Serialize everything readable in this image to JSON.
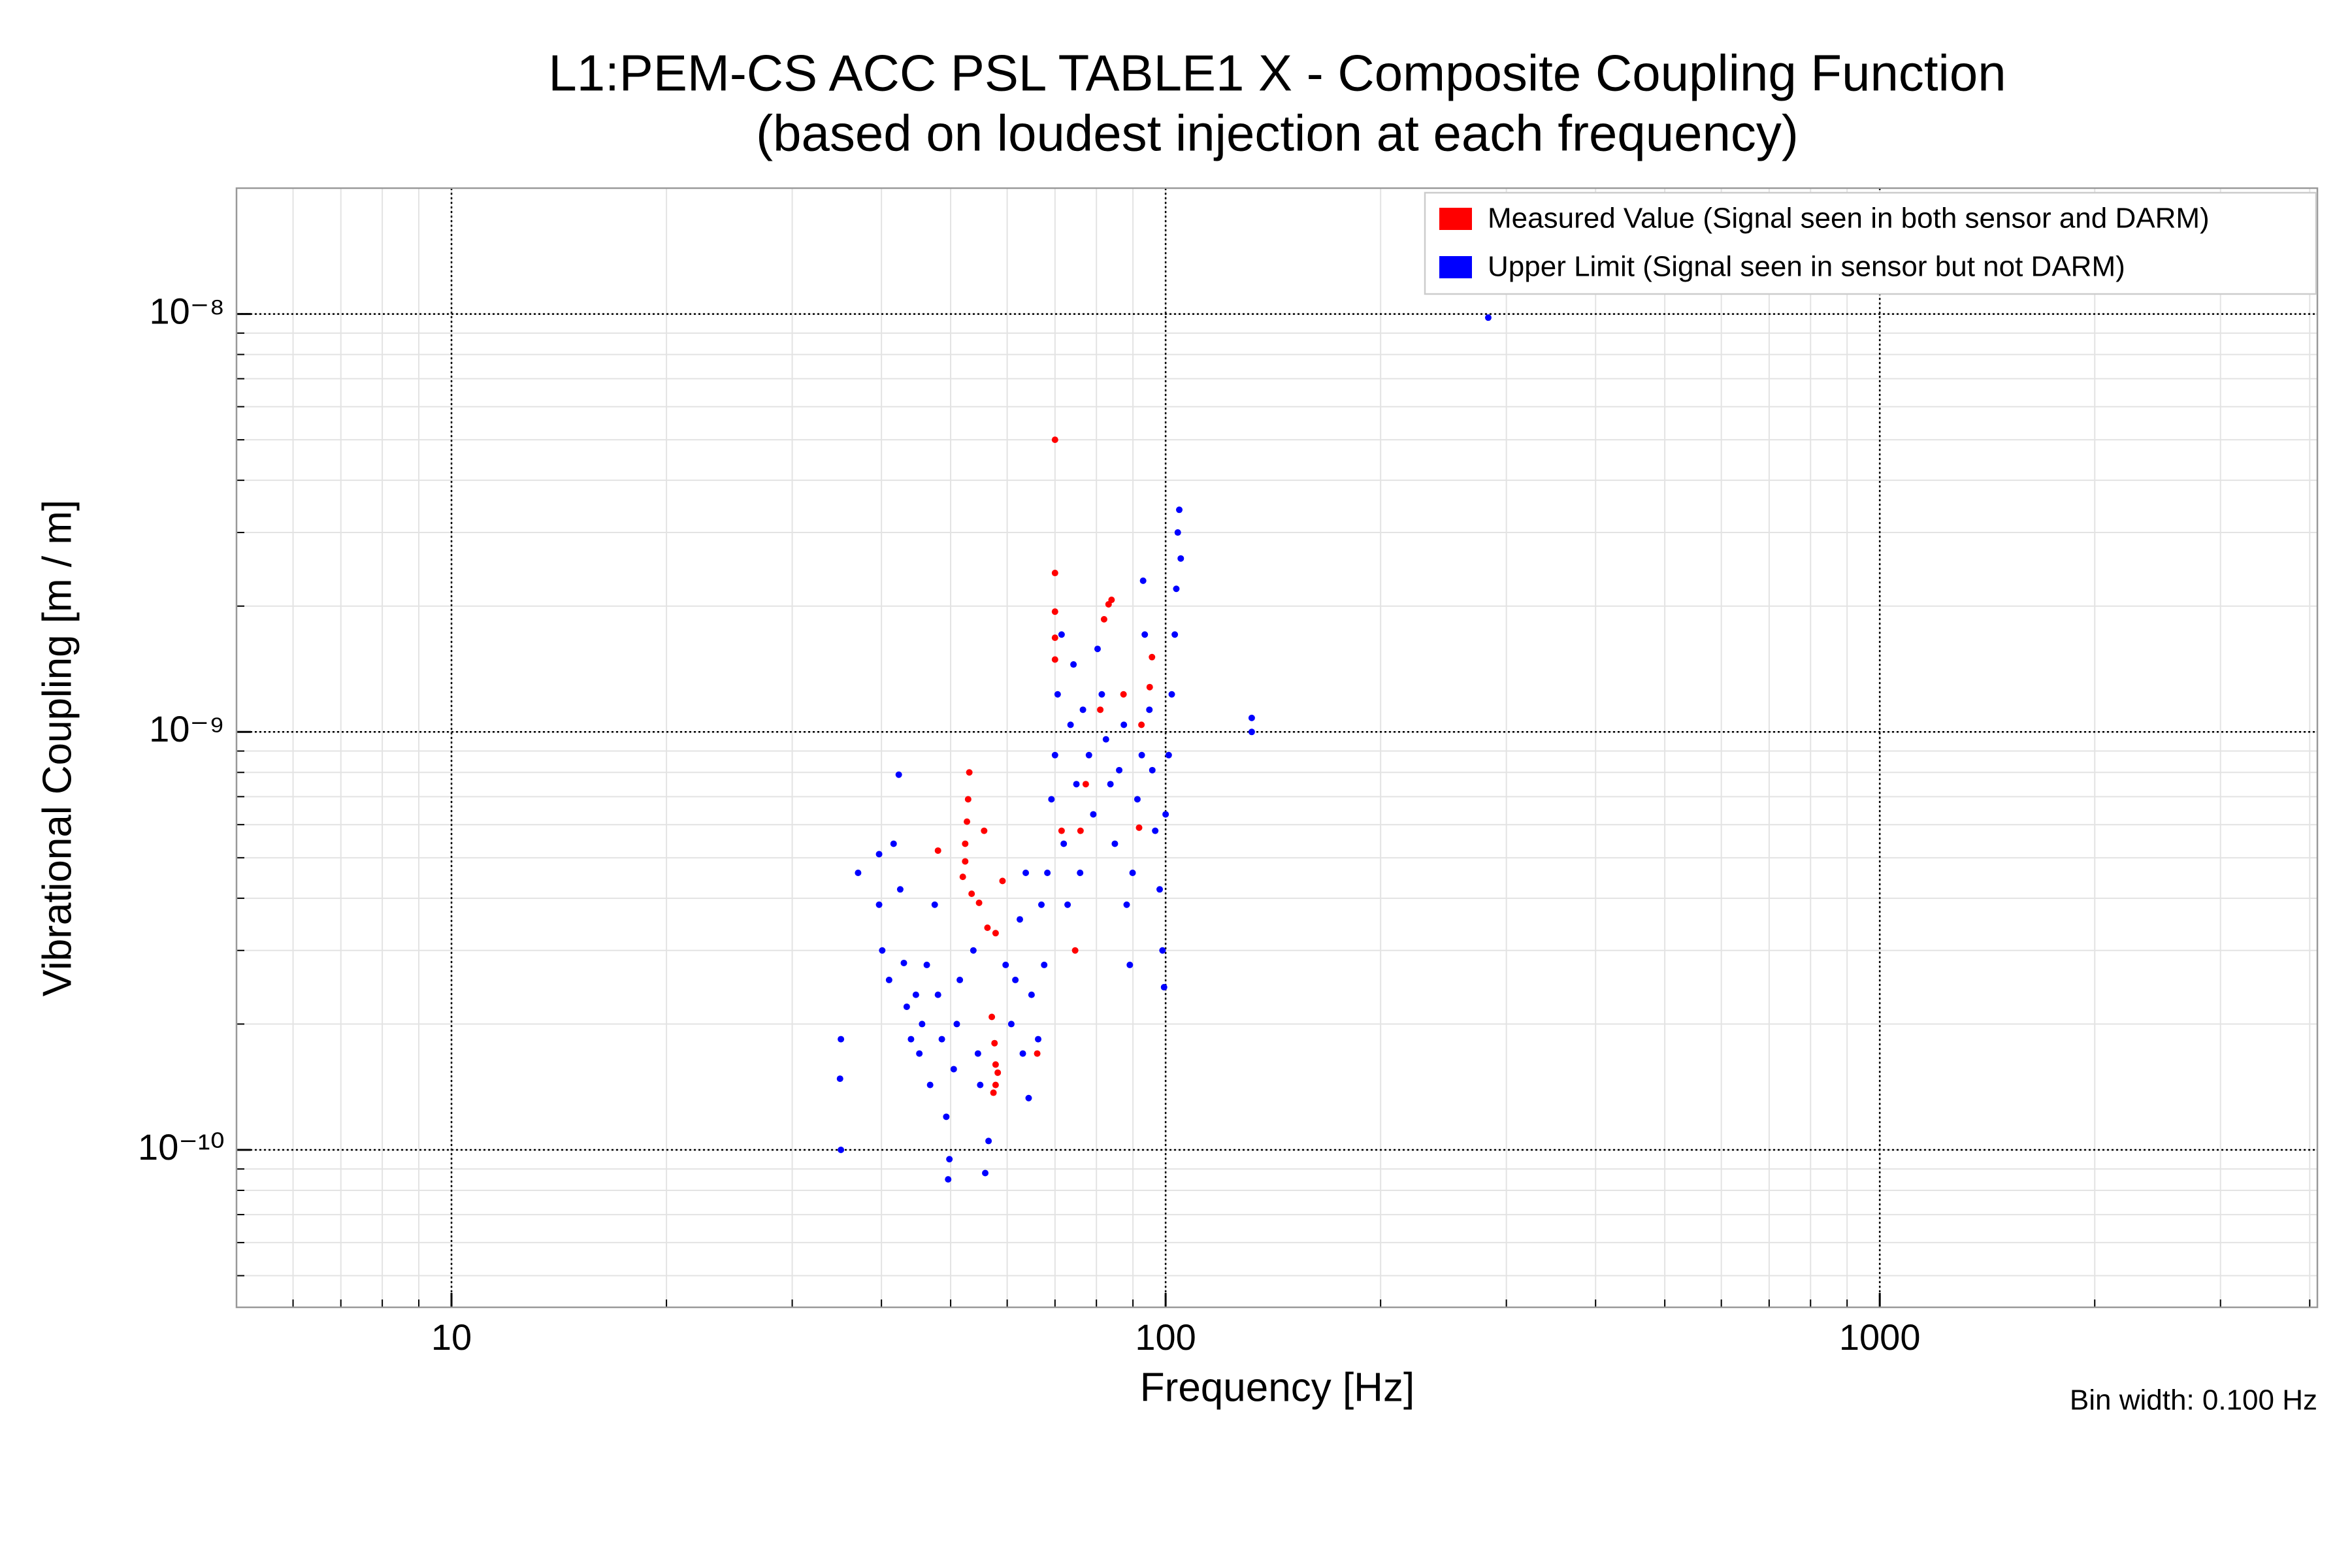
{
  "chart_data": {
    "type": "scatter",
    "title": "L1:PEM-CS ACC PSL TABLE1 X - Composite Coupling Function",
    "subtitle": "(based on loudest injection at each frequency)",
    "x_label": "Frequency [Hz]",
    "y_label": "Vibrational Coupling [m / m]",
    "annotation": "Bin width: 0.100 Hz",
    "x_log": true,
    "y_log": true,
    "grid": true,
    "minor_grid": true,
    "legend_position": "upper right",
    "xlim": [
      5,
      4100
    ],
    "ylim": [
      4.2e-11,
      2e-08
    ],
    "xticks": [
      10,
      100,
      1000
    ],
    "yticks": [
      {
        "value": 1e-10,
        "label": "10⁻¹⁰"
      },
      {
        "value": 1e-09,
        "label": "10⁻⁹"
      },
      {
        "value": 1e-08,
        "label": "10⁻⁸"
      }
    ],
    "series": [
      {
        "name": "Measured Value (Signal seen in both sensor and DARM)",
        "color": "#ff0000",
        "x": [
          70,
          70,
          70,
          70,
          70,
          83.2,
          82,
          84,
          95.7,
          95,
          77.3,
          76,
          87.3,
          92.5,
          91.8,
          53.1,
          52.9,
          52.7,
          52.4,
          52.4,
          55.7,
          53.5,
          54.8,
          48,
          52,
          56.3,
          59.1,
          57.8,
          57.1,
          57.6,
          57.8,
          57.8,
          58.2,
          57.4,
          66.1,
          74.7,
          71.5,
          81
        ],
        "values": [
          5e-09,
          2.4e-09,
          1.94e-09,
          1.68e-09,
          1.49e-09,
          2.02e-09,
          1.86e-09,
          2.07e-09,
          1.51e-09,
          1.28e-09,
          7.5e-10,
          5.8e-10,
          1.23e-09,
          1.04e-09,
          5.9e-10,
          8e-10,
          6.9e-10,
          6.1e-10,
          5.4e-10,
          4.9e-10,
          5.8e-10,
          4.1e-10,
          3.9e-10,
          5.2e-10,
          4.5e-10,
          3.4e-10,
          4.4e-10,
          3.3e-10,
          2.08e-10,
          1.8e-10,
          1.6e-10,
          1.43e-10,
          1.53e-10,
          1.37e-10,
          1.7e-10,
          3e-10,
          5.8e-10,
          1.13e-09
        ]
      },
      {
        "name": "Upper Limit (Signal seen in sensor but not DARM)",
        "color": "#0000ff",
        "x": [
          35.1,
          35,
          35.1,
          37.1,
          39.7,
          39.7,
          40.1,
          41,
          41.6,
          42.3,
          42.5,
          43,
          43.4,
          44,
          44.7,
          45.2,
          45.6,
          46.3,
          46.8,
          47.5,
          48,
          48.6,
          49.3,
          49.8,
          49.6,
          50.5,
          51,
          51.5,
          53.8,
          54.6,
          55,
          55.9,
          56.5,
          59.7,
          60.8,
          61.6,
          62.5,
          63.1,
          63.7,
          64.3,
          64.9,
          66.3,
          67,
          67.6,
          68.3,
          69.2,
          70,
          70.6,
          71.5,
          72,
          72.9,
          73.6,
          74.3,
          75,
          75.9,
          76.6,
          78.1,
          79.2,
          80.3,
          81.4,
          82.5,
          83.7,
          84.9,
          86.1,
          87.4,
          88.2,
          89.1,
          89.9,
          91.3,
          92.6,
          93.5,
          93,
          94.9,
          95.8,
          96.7,
          98.1,
          99,
          99.5,
          100,
          101,
          102,
          103,
          103.5,
          104,
          104.5,
          105,
          132,
          132,
          283
        ],
        "values": [
          1.84e-10,
          1.48e-10,
          1e-10,
          4.6e-10,
          5.1e-10,
          3.86e-10,
          3e-10,
          2.55e-10,
          5.4e-10,
          7.9e-10,
          4.2e-10,
          2.8e-10,
          2.2e-10,
          1.84e-10,
          2.35e-10,
          1.7e-10,
          2e-10,
          2.77e-10,
          1.43e-10,
          3.86e-10,
          2.35e-10,
          1.84e-10,
          1.2e-10,
          9.5e-11,
          8.5e-11,
          1.56e-10,
          2e-10,
          2.55e-10,
          3e-10,
          1.7e-10,
          1.43e-10,
          8.8e-11,
          1.05e-10,
          2.77e-10,
          2e-10,
          2.55e-10,
          3.56e-10,
          1.7e-10,
          4.6e-10,
          1.33e-10,
          2.35e-10,
          1.84e-10,
          3.86e-10,
          2.77e-10,
          4.6e-10,
          6.9e-10,
          8.8e-10,
          1.23e-09,
          1.71e-09,
          5.4e-10,
          3.86e-10,
          1.04e-09,
          1.45e-09,
          7.5e-10,
          4.6e-10,
          1.13e-09,
          8.8e-10,
          6.35e-10,
          1.58e-09,
          1.23e-09,
          9.6e-10,
          7.5e-10,
          5.4e-10,
          8.1e-10,
          1.04e-09,
          3.86e-10,
          2.77e-10,
          4.6e-10,
          6.9e-10,
          8.8e-10,
          1.71e-09,
          2.3e-09,
          1.13e-09,
          8.1e-10,
          5.8e-10,
          4.2e-10,
          3e-10,
          2.45e-10,
          6.35e-10,
          8.8e-10,
          1.23e-09,
          1.71e-09,
          2.2e-09,
          3e-09,
          3.4e-09,
          2.6e-09,
          1.08e-09,
          1e-09,
          9.8e-09
        ]
      }
    ]
  }
}
